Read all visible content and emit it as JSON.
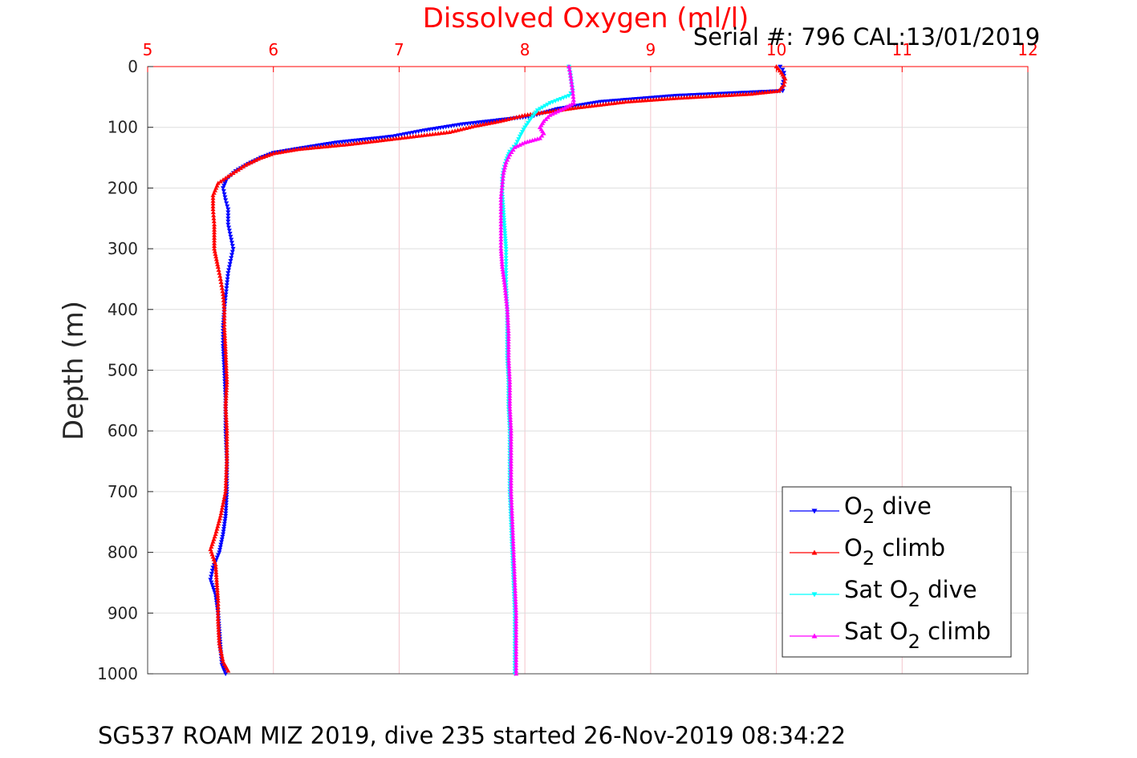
{
  "chart_data": {
    "type": "scatter",
    "title": "Dissolved Oxygen (ml/l)",
    "subtitle": "Serial #: 796  CAL:13/01/2019",
    "footer": "SG537 ROAM MIZ 2019, dive 235 started 26-Nov-2019 08:34:22",
    "ylabel": "Depth (m)",
    "xlim": [
      5,
      12
    ],
    "ylim": [
      0,
      1000
    ],
    "y_reversed": true,
    "x_axis_position": "top",
    "xticks": [
      "5",
      "6",
      "7",
      "8",
      "9",
      "10",
      "11",
      "12"
    ],
    "yticks": [
      "0",
      "100",
      "200",
      "300",
      "400",
      "500",
      "600",
      "700",
      "800",
      "900",
      "1000"
    ],
    "grid": true,
    "legend_position": "bottom-right",
    "colors": {
      "title": "#ff0000",
      "xaxis": "#ff0000",
      "grid": "#f4c6cc",
      "o2_dive": "#0000ff",
      "o2_climb": "#ff0000",
      "sat_dive": "#00ffff",
      "sat_climb": "#ff00ff"
    },
    "legend": [
      {
        "base": "O",
        "sub": "2",
        "tail": " dive",
        "color": "#0000ff",
        "marker": "down"
      },
      {
        "base": "O",
        "sub": "2",
        "tail": " climb",
        "color": "#ff0000",
        "marker": "up"
      },
      {
        "base": "Sat O",
        "sub": "2",
        "tail": " dive",
        "color": "#00ffff",
        "marker": "down"
      },
      {
        "base": "Sat O",
        "sub": "2",
        "tail": " climb",
        "color": "#ff00ff",
        "marker": "up"
      }
    ],
    "series": [
      {
        "key": "o2_dive",
        "marker": "down",
        "points": [
          [
            10.03,
            0
          ],
          [
            10.05,
            5
          ],
          [
            10.06,
            10
          ],
          [
            10.06,
            20
          ],
          [
            10.05,
            30
          ],
          [
            10.05,
            40
          ],
          [
            9.2,
            48
          ],
          [
            8.6,
            58
          ],
          [
            8.25,
            70
          ],
          [
            8.05,
            82
          ],
          [
            7.5,
            95
          ],
          [
            7.2,
            105
          ],
          [
            6.95,
            115
          ],
          [
            6.5,
            125
          ],
          [
            6.2,
            135
          ],
          [
            6.0,
            142
          ],
          [
            5.9,
            150
          ],
          [
            5.8,
            160
          ],
          [
            5.7,
            172
          ],
          [
            5.63,
            185
          ],
          [
            5.6,
            200
          ],
          [
            5.62,
            220
          ],
          [
            5.64,
            235
          ],
          [
            5.64,
            260
          ],
          [
            5.66,
            280
          ],
          [
            5.68,
            300
          ],
          [
            5.66,
            320
          ],
          [
            5.64,
            340
          ],
          [
            5.63,
            360
          ],
          [
            5.62,
            380
          ],
          [
            5.61,
            400
          ],
          [
            5.6,
            430
          ],
          [
            5.6,
            460
          ],
          [
            5.61,
            500
          ],
          [
            5.62,
            550
          ],
          [
            5.62,
            600
          ],
          [
            5.63,
            650
          ],
          [
            5.63,
            700
          ],
          [
            5.62,
            740
          ],
          [
            5.6,
            770
          ],
          [
            5.57,
            800
          ],
          [
            5.52,
            825
          ],
          [
            5.5,
            845
          ],
          [
            5.54,
            870
          ],
          [
            5.56,
            900
          ],
          [
            5.57,
            930
          ],
          [
            5.58,
            960
          ],
          [
            5.59,
            985
          ],
          [
            5.62,
            1000
          ]
        ]
      },
      {
        "key": "o2_climb",
        "marker": "up",
        "points": [
          [
            10.0,
            0
          ],
          [
            10.04,
            10
          ],
          [
            10.07,
            20
          ],
          [
            10.06,
            30
          ],
          [
            10.02,
            40
          ],
          [
            9.8,
            45
          ],
          [
            9.2,
            52
          ],
          [
            8.8,
            58
          ],
          [
            8.4,
            68
          ],
          [
            8.0,
            80
          ],
          [
            7.8,
            90
          ],
          [
            7.6,
            98
          ],
          [
            7.4,
            108
          ],
          [
            7.0,
            118
          ],
          [
            6.6,
            128
          ],
          [
            6.2,
            136
          ],
          [
            6.0,
            143
          ],
          [
            5.88,
            152
          ],
          [
            5.78,
            162
          ],
          [
            5.66,
            178
          ],
          [
            5.56,
            192
          ],
          [
            5.52,
            212
          ],
          [
            5.52,
            235
          ],
          [
            5.53,
            260
          ],
          [
            5.53,
            300
          ],
          [
            5.56,
            330
          ],
          [
            5.58,
            350
          ],
          [
            5.6,
            375
          ],
          [
            5.61,
            400
          ],
          [
            5.61,
            430
          ],
          [
            5.62,
            470
          ],
          [
            5.63,
            520
          ],
          [
            5.62,
            560
          ],
          [
            5.63,
            600
          ],
          [
            5.63,
            650
          ],
          [
            5.62,
            700
          ],
          [
            5.58,
            740
          ],
          [
            5.54,
            770
          ],
          [
            5.5,
            795
          ],
          [
            5.54,
            820
          ],
          [
            5.55,
            850
          ],
          [
            5.56,
            880
          ],
          [
            5.56,
            910
          ],
          [
            5.57,
            950
          ],
          [
            5.6,
            980
          ],
          [
            5.64,
            995
          ]
        ]
      },
      {
        "key": "sat_dive",
        "marker": "down",
        "points": [
          [
            8.35,
            0
          ],
          [
            8.36,
            10
          ],
          [
            8.37,
            25
          ],
          [
            8.38,
            40
          ],
          [
            8.35,
            48
          ],
          [
            8.2,
            60
          ],
          [
            8.1,
            72
          ],
          [
            8.05,
            85
          ],
          [
            8.0,
            100
          ],
          [
            7.96,
            115
          ],
          [
            7.93,
            128
          ],
          [
            7.88,
            140
          ],
          [
            7.85,
            155
          ],
          [
            7.83,
            170
          ],
          [
            7.82,
            185
          ],
          [
            7.82,
            210
          ],
          [
            7.83,
            240
          ],
          [
            7.84,
            270
          ],
          [
            7.85,
            300
          ],
          [
            7.85,
            330
          ],
          [
            7.85,
            360
          ],
          [
            7.86,
            400
          ],
          [
            7.86,
            440
          ],
          [
            7.86,
            480
          ],
          [
            7.87,
            520
          ],
          [
            7.87,
            560
          ],
          [
            7.88,
            600
          ],
          [
            7.88,
            650
          ],
          [
            7.88,
            700
          ],
          [
            7.89,
            750
          ],
          [
            7.9,
            800
          ],
          [
            7.91,
            850
          ],
          [
            7.92,
            900
          ],
          [
            7.92,
            950
          ],
          [
            7.92,
            1000
          ]
        ]
      },
      {
        "key": "sat_climb",
        "marker": "up",
        "points": [
          [
            8.35,
            0
          ],
          [
            8.36,
            10
          ],
          [
            8.37,
            25
          ],
          [
            8.38,
            40
          ],
          [
            8.39,
            60
          ],
          [
            8.3,
            70
          ],
          [
            8.2,
            80
          ],
          [
            8.15,
            90
          ],
          [
            8.12,
            100
          ],
          [
            8.15,
            110
          ],
          [
            8.12,
            118
          ],
          [
            8.0,
            125
          ],
          [
            7.92,
            133
          ],
          [
            7.88,
            145
          ],
          [
            7.85,
            158
          ],
          [
            7.83,
            175
          ],
          [
            7.82,
            195
          ],
          [
            7.81,
            215
          ],
          [
            7.81,
            240
          ],
          [
            7.81,
            270
          ],
          [
            7.81,
            300
          ],
          [
            7.82,
            330
          ],
          [
            7.84,
            360
          ],
          [
            7.86,
            400
          ],
          [
            7.87,
            440
          ],
          [
            7.87,
            480
          ],
          [
            7.88,
            520
          ],
          [
            7.88,
            560
          ],
          [
            7.89,
            600
          ],
          [
            7.89,
            650
          ],
          [
            7.89,
            700
          ],
          [
            7.9,
            750
          ],
          [
            7.91,
            800
          ],
          [
            7.92,
            850
          ],
          [
            7.93,
            900
          ],
          [
            7.93,
            950
          ],
          [
            7.93,
            1000
          ]
        ]
      }
    ]
  }
}
